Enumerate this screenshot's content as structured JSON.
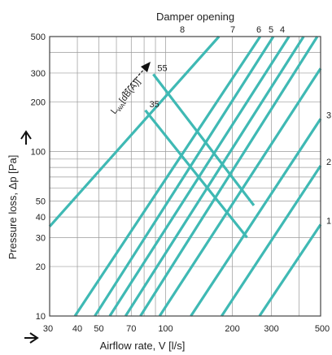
{
  "colors": {
    "curve": "#3fb9b4",
    "grid": "#9a9a9a",
    "frame": "#444444",
    "text": "#222222"
  },
  "chart_data": {
    "type": "line",
    "title": "Damper opening",
    "xlabel": "Airflow rate, V [l/s]",
    "ylabel": "Pressure loss, Δp [Pa]",
    "xscale": "log",
    "yscale": "log",
    "xlim": [
      30,
      500
    ],
    "ylim": [
      10,
      500
    ],
    "grid": true,
    "x_ticks": [
      30,
      40,
      50,
      70,
      100,
      200,
      300,
      500
    ],
    "x_tick_labels": [
      "30",
      "40",
      "50",
      "70",
      "100",
      "200",
      "300",
      "500"
    ],
    "y_ticks": [
      10,
      20,
      30,
      40,
      50,
      100,
      200,
      300,
      500
    ],
    "y_tick_labels": [
      "10",
      "20",
      "30",
      "40",
      "50",
      "100",
      "200",
      "300",
      "500"
    ],
    "series": [
      {
        "name": "8",
        "x": [
          30,
          174
        ],
        "y": [
          35,
          500
        ]
      },
      {
        "name": "",
        "x": [
          39,
          267
        ],
        "y": [
          10,
          500
        ]
      },
      {
        "name": "",
        "x": [
          48,
          306
        ],
        "y": [
          10,
          500
        ]
      },
      {
        "name": "7",
        "x": [
          56,
          360
        ],
        "y": [
          10,
          500
        ]
      },
      {
        "name": "6",
        "x": [
          66,
          419
        ],
        "y": [
          10,
          500
        ]
      },
      {
        "name": "5",
        "x": [
          77,
          483
        ],
        "y": [
          10,
          500
        ]
      },
      {
        "name": "4",
        "x": [
          94,
          500
        ],
        "y": [
          10,
          320
        ]
      },
      {
        "name": "3",
        "x": [
          130,
          500
        ],
        "y": [
          10,
          158
        ]
      },
      {
        "name": "2",
        "x": [
          179,
          500
        ],
        "y": [
          10,
          82
        ]
      },
      {
        "name": "1",
        "x": [
          265,
          500
        ],
        "y": [
          10,
          36
        ]
      }
    ],
    "lwa_curves": [
      {
        "label": "55",
        "x": [
          88,
          250
        ],
        "y": [
          295,
          47
        ]
      },
      {
        "label": "35",
        "x": [
          81,
          233
        ],
        "y": [
          178,
          30
        ]
      }
    ],
    "damper_labels": [
      "8",
      "7",
      "6",
      "5",
      "4"
    ],
    "annotation": {
      "text": "L",
      "sub": "WA",
      "suffix": "[dB(A)]"
    }
  }
}
